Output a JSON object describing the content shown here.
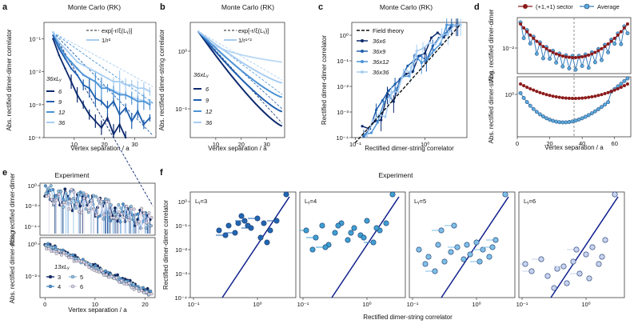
{
  "figure": {
    "panels": [
      {
        "id": "a",
        "label": "a",
        "title": "Monte Carlo (RK)"
      },
      {
        "id": "b",
        "label": "b",
        "title": "Monte Carlo (RK)"
      },
      {
        "id": "c",
        "label": "c",
        "title": "Monte Carlo (RK)"
      },
      {
        "id": "d",
        "label": "d",
        "title": ""
      },
      {
        "id": "e",
        "label": "e",
        "title": "Experiment"
      },
      {
        "id": "f",
        "label": "f",
        "title": "Experiment"
      }
    ],
    "colors": {
      "c6": "#0d2a6e",
      "c9": "#1f5fae",
      "c12": "#4c93d6",
      "c36": "#a8cdf1",
      "red": "#8b1a1a",
      "dot": "#5aa9dc",
      "navy": "#0f1f8c"
    }
  },
  "chart_data": [
    {
      "panel": "a",
      "type": "line",
      "title": "Monte Carlo (RK)",
      "xlabel": "Vertex separation / a",
      "ylabel": "Abs. rectified dimer-dimer correlator",
      "xlim": [
        0,
        37
      ],
      "ylim": [
        -4,
        -0.5
      ],
      "yscale": "log",
      "xticks": [
        10,
        20,
        30
      ],
      "yticks": [
        "10⁻¹",
        "10⁻²",
        "10⁻³",
        "10⁻⁴"
      ],
      "legend": [
        "exp[-r/ξ(Lᵧ)]",
        "1/r²"
      ],
      "series_label": "36xLᵧ",
      "series": [
        {
          "name": "6",
          "color": "#0d2a6e",
          "x": [
            3,
            5,
            7,
            9,
            11,
            13,
            15,
            17,
            19,
            21,
            23,
            25,
            27
          ],
          "logy": [
            -1.0,
            -1.5,
            -1.9,
            -2.3,
            -2.7,
            -3.0,
            -3.3,
            -3.5,
            -3.7,
            -3.4,
            -3.9,
            -3.6,
            -4.0
          ]
        },
        {
          "name": "9",
          "color": "#1f5fae",
          "x": [
            3,
            5,
            7,
            9,
            11,
            13,
            15,
            17,
            19,
            21,
            23,
            25,
            27,
            29,
            31,
            33,
            35
          ],
          "logy": [
            -0.9,
            -1.3,
            -1.6,
            -1.9,
            -2.1,
            -2.4,
            -2.5,
            -2.8,
            -2.9,
            -3.1,
            -2.9,
            -3.3,
            -3.1,
            -3.5,
            -3.2,
            -3.6,
            -3.4
          ]
        },
        {
          "name": "12",
          "color": "#4c93d6",
          "x": [
            3,
            5,
            7,
            9,
            11,
            13,
            15,
            17,
            19,
            21,
            23,
            25,
            27,
            29,
            31,
            33,
            35
          ],
          "logy": [
            -0.8,
            -1.2,
            -1.5,
            -1.7,
            -1.9,
            -2.1,
            -2.2,
            -2.3,
            -2.5,
            -2.5,
            -2.6,
            -2.7,
            -2.7,
            -2.8,
            -2.9,
            -2.9,
            -3.0
          ]
        },
        {
          "name": "36",
          "color": "#a8cdf1",
          "x": [
            3,
            5,
            7,
            9,
            11,
            13,
            15,
            17,
            19,
            21,
            23,
            25,
            27,
            29,
            31,
            33,
            35
          ],
          "logy": [
            -0.8,
            -1.1,
            -1.3,
            -1.5,
            -1.7,
            -1.8,
            -1.9,
            -2.0,
            -2.1,
            -2.2,
            -2.3,
            -2.3,
            -2.4,
            -2.4,
            -2.5,
            -2.5,
            -2.6
          ]
        }
      ]
    },
    {
      "panel": "b",
      "type": "line",
      "title": "Monte Carlo (RK)",
      "xlabel": "Vertex separation / a",
      "ylabel": "Abs. rectified dimer-string correlator",
      "xlim": [
        0,
        37
      ],
      "ylim": [
        -1.5,
        0.5
      ],
      "yscale": "log",
      "xticks": [
        10,
        20,
        30
      ],
      "yticks": [
        "10⁰",
        "10⁻¹"
      ],
      "legend": [
        "exp[-r/ξ(Lᵧ)]",
        "1/r¹ᐟ²"
      ],
      "series_label": "36xLᵧ",
      "series": [
        {
          "name": "6",
          "color": "#0d2a6e",
          "x": [
            3,
            36
          ],
          "logy": [
            0.35,
            -1.3
          ]
        },
        {
          "name": "9",
          "color": "#1f5fae",
          "x": [
            3,
            36
          ],
          "logy": [
            0.35,
            -1.05
          ]
        },
        {
          "name": "12",
          "color": "#4c93d6",
          "x": [
            3,
            36
          ],
          "logy": [
            0.35,
            -0.8
          ]
        },
        {
          "name": "36",
          "color": "#a8cdf1",
          "x": [
            3,
            36
          ],
          "logy": [
            0.35,
            -0.55
          ]
        }
      ]
    },
    {
      "panel": "c",
      "type": "scatter",
      "title": "Monte Carlo (RK)",
      "xlabel": "Rectified dimer-string correlator",
      "ylabel": "Rectified dimer-dimer correlator",
      "xlim": [
        -1,
        0.5
      ],
      "ylim": [
        -4,
        0.5
      ],
      "scale": "loglog",
      "xticks": [
        "10⁻¹",
        "10⁰"
      ],
      "yticks": [
        "10⁰",
        "10⁻¹",
        "10⁻²",
        "10⁻³",
        "10⁻⁴"
      ],
      "legend": [
        "Field theory",
        "36x6",
        "36x9",
        "36x12",
        "36x36"
      ],
      "field_theory": {
        "logx": [
          -1.0,
          0.5
        ],
        "logy": [
          -4.2,
          0.4
        ]
      }
    },
    {
      "panel": "d",
      "type": "line",
      "title": "",
      "xlabel": "Vertex separation / a",
      "ylabel_top": "Abs. rectified dimer-dimer",
      "ylabel_bottom": "Abs. rectified dimer-string",
      "xlim": [
        0,
        70
      ],
      "xticks": [
        0,
        20,
        40,
        60
      ],
      "vline_x": 35,
      "top_yticks": [
        "10⁻²"
      ],
      "bottom_yticks": [
        "10⁰"
      ],
      "legend": [
        "(+1,+1) sector",
        "Average"
      ]
    },
    {
      "panel": "e",
      "type": "scatter",
      "title": "Experiment",
      "xlabel": "Vertex separation / a",
      "ylabel_top": "Abs. rectified dimer-dimer",
      "ylabel_bottom": "Abs. rectified dimer-string",
      "xlim": [
        0,
        22
      ],
      "xticks": [
        0,
        10,
        20
      ],
      "top_yticks": [
        "10⁰",
        "10⁻²",
        "10⁻⁴"
      ],
      "bottom_yticks": [
        "10⁰",
        "10⁻²"
      ],
      "series_label": "13xLᵧ",
      "series": [
        {
          "name": "3",
          "color": "#0d2a6e"
        },
        {
          "name": "4",
          "color": "#4c93d6"
        },
        {
          "name": "5",
          "color": "#8fbfe6"
        },
        {
          "name": "6",
          "color": "#d9d3ea"
        }
      ]
    },
    {
      "panel": "f",
      "type": "scatter",
      "title": "Experiment",
      "xlabel": "Rectified dimer-string correlator",
      "ylabel": "Rectified dimer-dimer correlator",
      "xlim": [
        -1,
        0.6
      ],
      "ylim": [
        -4,
        0.4
      ],
      "scale": "loglog",
      "xticks": [
        "10⁻¹",
        "10⁰"
      ],
      "yticks": [
        "10⁰",
        "10⁻¹",
        "10⁻²",
        "10⁻³",
        "10⁻⁴"
      ],
      "subpanels": [
        {
          "name": "Lᵧ=3",
          "color": "#2266b0",
          "logx": [
            -0.6,
            -0.45,
            -0.3,
            -0.2,
            -0.1,
            0.0,
            0.1,
            -0.5,
            -0.35,
            -0.15,
            0.05,
            0.2,
            0.3,
            0.45,
            -0.25,
            0.15
          ],
          "logy": [
            -1.2,
            -1.0,
            -0.9,
            -0.8,
            -1.1,
            -0.7,
            -0.9,
            -1.4,
            -1.3,
            -1.0,
            -1.5,
            -1.2,
            -0.8,
            0.3,
            -0.6,
            -1.7
          ]
        },
        {
          "name": "Lᵧ=4",
          "color": "#3f9fd0",
          "logx": [
            -0.95,
            -0.8,
            -0.7,
            -0.6,
            -0.5,
            -0.4,
            -0.3,
            -0.2,
            -0.1,
            0.0,
            0.1,
            0.2,
            0.3,
            -0.85,
            -0.65,
            -0.45,
            -0.25,
            -0.05,
            0.15,
            0.4
          ],
          "logy": [
            -1.2,
            -1.5,
            -1.0,
            -1.8,
            -1.3,
            -0.9,
            -1.6,
            -1.1,
            -1.4,
            -0.8,
            -1.7,
            -1.2,
            -0.9,
            -2.0,
            -1.9,
            -1.0,
            -1.3,
            -1.5,
            -1.1,
            0.3
          ]
        },
        {
          "name": "Lᵧ=5",
          "color": "#7fbfe6",
          "logx": [
            -0.9,
            -0.75,
            -0.6,
            -0.5,
            -0.4,
            -0.3,
            -0.2,
            -0.1,
            0.0,
            0.1,
            0.2,
            0.3,
            -0.8,
            -0.55,
            -0.35,
            -0.15,
            0.05,
            0.25,
            0.45,
            -0.65
          ],
          "logy": [
            -2.0,
            -2.3,
            -1.8,
            -2.5,
            -2.1,
            -1.9,
            -2.4,
            -2.2,
            -1.7,
            -2.0,
            -2.3,
            -1.6,
            -2.6,
            -1.2,
            -1.0,
            -1.8,
            -2.5,
            -1.9,
            0.3,
            -2.9
          ]
        },
        {
          "name": "Lᵧ=6",
          "color": "#c9d3ee",
          "logx": [
            -0.95,
            -0.85,
            -0.7,
            -0.6,
            -0.45,
            -0.3,
            -0.2,
            -0.1,
            0.0,
            0.1,
            0.2,
            0.3,
            -0.5,
            -0.35,
            -0.15,
            0.05,
            0.25,
            0.45
          ],
          "logy": [
            -2.6,
            -2.9,
            -2.4,
            -3.1,
            -2.8,
            -3.4,
            -2.5,
            -3.0,
            -2.2,
            -1.9,
            -2.6,
            -1.6,
            -3.6,
            -2.7,
            -2.0,
            -3.2,
            -2.3,
            0.3
          ]
        }
      ]
    }
  ]
}
